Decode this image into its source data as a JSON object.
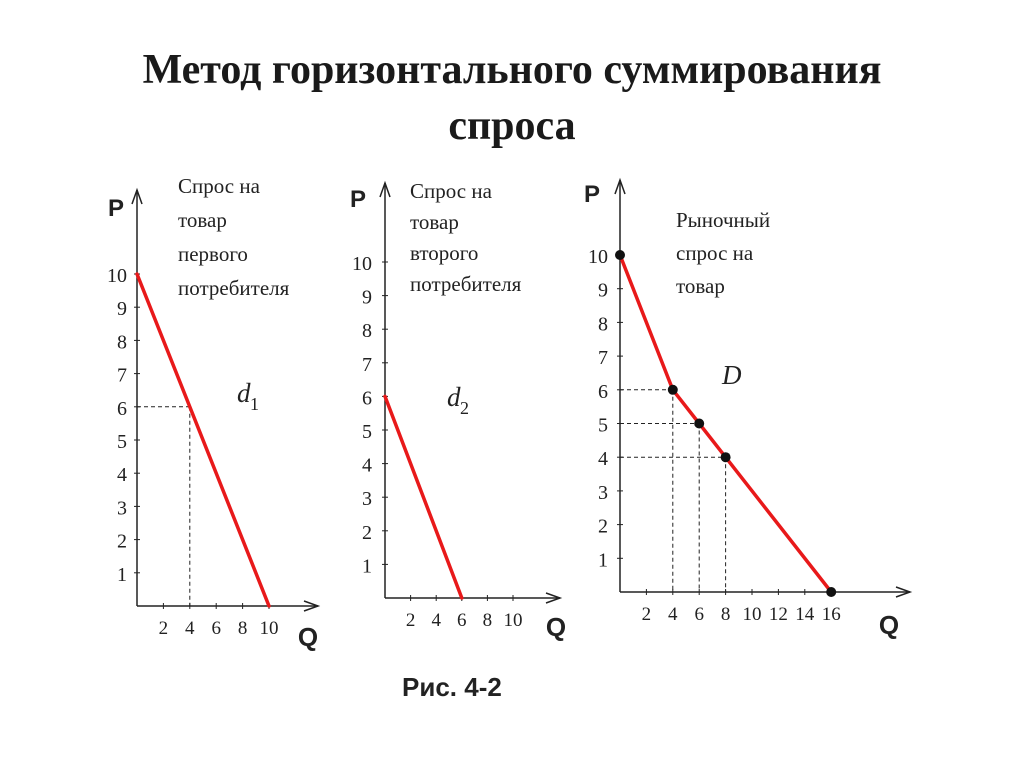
{
  "title_line1": "Метод горизонтального суммирования",
  "title_line2": "спроса",
  "caption": "Рис. 4-2",
  "colors": {
    "curve": "#e8191a",
    "axis": "#222222",
    "text": "#222222"
  },
  "chart_data": [
    {
      "type": "line",
      "ylabel": "P",
      "xlabel": "Q",
      "legend_lines": [
        "Спрос на",
        "товар",
        "первого",
        "потребителя"
      ],
      "curve_label": "d",
      "curve_label_sub": "1",
      "y_ticks": [
        1,
        2,
        3,
        4,
        5,
        6,
        7,
        8,
        9,
        10
      ],
      "x_ticks": [
        2,
        4,
        6,
        8,
        10
      ],
      "xlim": [
        0,
        12
      ],
      "ylim": [
        0,
        10.5
      ],
      "series": [
        {
          "x": [
            0,
            10
          ],
          "y": [
            10,
            0
          ]
        }
      ],
      "guides": [
        {
          "x": 4,
          "y": 6
        }
      ],
      "points": []
    },
    {
      "type": "line",
      "ylabel": "P",
      "xlabel": "Q",
      "legend_lines": [
        "Спрос на",
        "товар",
        "второго",
        "потребителя"
      ],
      "curve_label": "d",
      "curve_label_sub": "2",
      "y_ticks": [
        1,
        2,
        3,
        4,
        5,
        6,
        7,
        8,
        9,
        10
      ],
      "x_ticks": [
        2,
        4,
        6,
        8,
        10
      ],
      "xlim": [
        0,
        12
      ],
      "ylim": [
        0,
        10.5
      ],
      "series": [
        {
          "x": [
            0,
            6
          ],
          "y": [
            6,
            0
          ]
        }
      ],
      "guides": [],
      "points": []
    },
    {
      "type": "line",
      "ylabel": "P",
      "xlabel": "Q",
      "legend_lines": [
        "Рыночный",
        "спрос на",
        "товар"
      ],
      "curve_label": "D",
      "curve_label_sub": "",
      "y_ticks": [
        1,
        2,
        3,
        4,
        5,
        6,
        7,
        8,
        9,
        10
      ],
      "x_ticks": [
        2,
        4,
        6,
        8,
        10,
        12,
        14,
        16
      ],
      "xlim": [
        0,
        20
      ],
      "ylim": [
        0,
        10.5
      ],
      "series": [
        {
          "x": [
            0,
            4,
            6,
            8,
            16
          ],
          "y": [
            10,
            6,
            5,
            4,
            0
          ]
        }
      ],
      "guides": [
        {
          "x": 4,
          "y": 6
        },
        {
          "x": 6,
          "y": 5
        },
        {
          "x": 8,
          "y": 4
        }
      ],
      "points": [
        {
          "x": 0,
          "y": 10
        },
        {
          "x": 4,
          "y": 6
        },
        {
          "x": 6,
          "y": 5
        },
        {
          "x": 8,
          "y": 4
        },
        {
          "x": 16,
          "y": 0
        }
      ]
    }
  ]
}
